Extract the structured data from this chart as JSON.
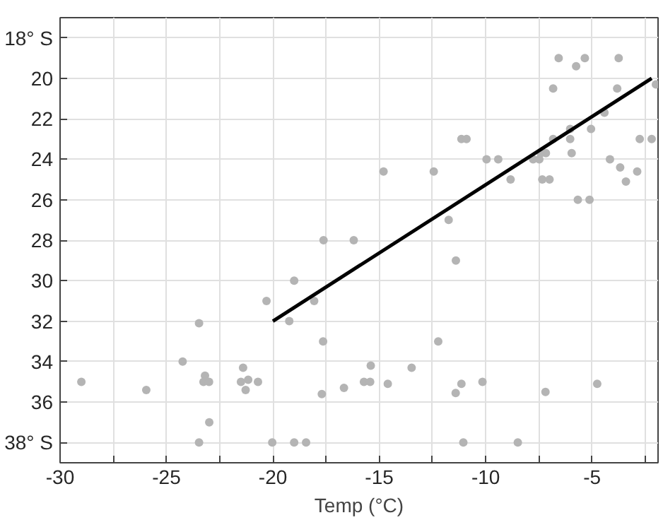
{
  "chart_data": {
    "type": "scatter",
    "xlabel": "Temp (°C)",
    "xlim": [
      -30,
      -1.9
    ],
    "ylim": [
      39,
      17
    ],
    "xticks": [
      -30,
      {
        "value": -27.5,
        "label": null
      },
      -25,
      {
        "value": -22.5,
        "label": null
      },
      -20,
      {
        "value": -17.5,
        "label": null
      },
      -15,
      {
        "value": -12.5,
        "label": null
      },
      -10,
      {
        "value": -7.5,
        "label": null
      },
      -5,
      {
        "value": -2.5,
        "label": null
      }
    ],
    "yticks": [
      {
        "value": 18,
        "label": "18° S"
      },
      20,
      22,
      24,
      26,
      28,
      30,
      32,
      34,
      36,
      {
        "value": 38,
        "label": "38° S"
      }
    ],
    "grid": true,
    "marker": "circle",
    "series": [
      {
        "color": "#b4b4b4",
        "x": [
          -6.57,
          -5.75,
          -5.34,
          -3.75,
          -6.83,
          -3.82,
          -2.0,
          -4.42,
          -5.05,
          -6.03,
          -6.03,
          -6.83,
          -11.14,
          -10.9,
          -2.76,
          -2.2,
          -7.17,
          -5.96,
          -7.41,
          -9.96,
          -9.41,
          -7.77,
          -7.48,
          -4.16,
          -14.8,
          -12.44,
          -3.68,
          -2.88,
          -8.83,
          -7.34,
          -7.0,
          -3.41,
          -5.67,
          -5.12,
          -11.74,
          -17.62,
          -16.2,
          -11.4,
          -19.0,
          -20.3,
          -18.06,
          -19.23,
          -23.47,
          -24.24,
          -21.4,
          -29.0,
          -25.95,
          -23.19,
          -23.26,
          -23.0,
          -21.5,
          -21.16,
          -20.7,
          -21.28,
          -22.99,
          -23.47,
          -20.03,
          -19.0,
          -18.44,
          -17.64,
          -17.7,
          -12.23,
          -15.4,
          -13.48,
          -16.66,
          -15.72,
          -15.43,
          -14.6,
          -11.41,
          -11.14,
          -10.15,
          -7.19,
          -4.76,
          -11.05,
          -8.49
        ],
        "values": [
          19.0,
          19.4,
          19.0,
          19.0,
          20.5,
          20.5,
          20.3,
          21.7,
          22.5,
          22.5,
          23.0,
          23.0,
          23.0,
          23.0,
          23.0,
          23.0,
          23.7,
          23.7,
          23.7,
          24.0,
          24.0,
          24.0,
          24.0,
          24.0,
          24.6,
          24.6,
          24.4,
          24.6,
          25.0,
          25.0,
          25.0,
          25.1,
          26.0,
          26.0,
          27.0,
          28.0,
          28.0,
          29.0,
          30.0,
          31.0,
          31.0,
          32.0,
          32.1,
          34.0,
          34.3,
          35.0,
          35.4,
          34.7,
          35.0,
          35.0,
          35.0,
          34.9,
          35.0,
          35.4,
          37.0,
          38.0,
          38.0,
          38.0,
          38.0,
          33.0,
          35.6,
          33.0,
          34.2,
          34.3,
          35.3,
          35.0,
          35.0,
          35.1,
          35.55,
          35.1,
          35.0,
          35.5,
          35.1,
          38.0,
          38.0
        ]
      },
      {
        "type": "line",
        "color": "#000000",
        "x": [
          -20,
          -2.2
        ],
        "values": [
          32,
          20
        ],
        "marker": "none",
        "line_style": "solid"
      }
    ]
  }
}
